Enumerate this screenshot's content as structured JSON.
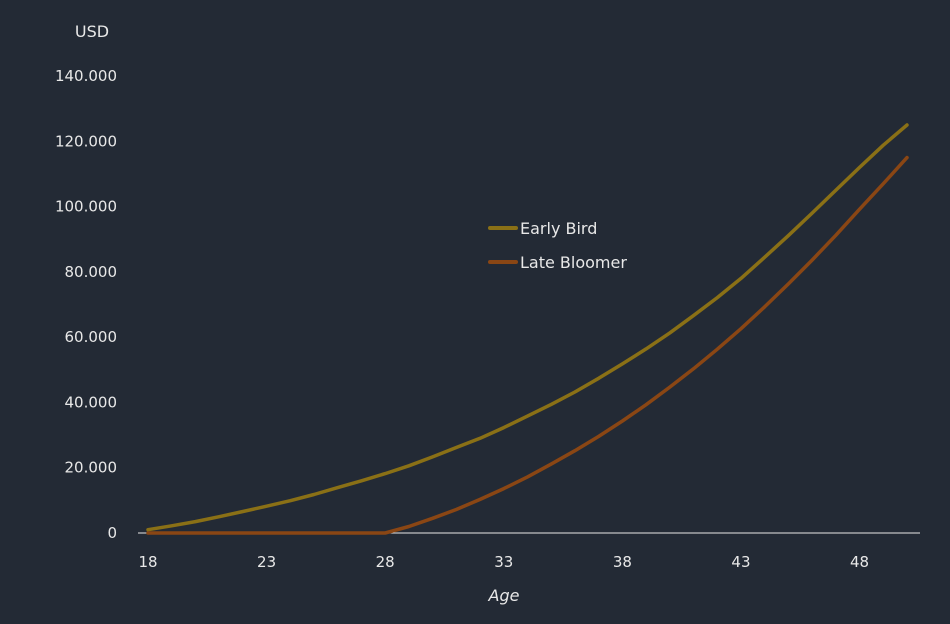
{
  "chart_data": {
    "type": "line",
    "title": "",
    "xlabel": "Age",
    "ylabel": "USD",
    "xlim": [
      18,
      50
    ],
    "ylim": [
      0,
      140000
    ],
    "x_ticks": [
      18,
      23,
      28,
      33,
      38,
      43,
      48
    ],
    "y_ticks": [
      0,
      20000,
      40000,
      60000,
      80000,
      100000,
      120000,
      140000
    ],
    "y_tick_labels": [
      "0",
      "20.000",
      "40.000",
      "60.000",
      "80.000",
      "100.000",
      "120.000",
      "140.000"
    ],
    "grid": false,
    "legend_position": "center",
    "x": [
      18,
      19,
      20,
      21,
      22,
      23,
      24,
      25,
      26,
      27,
      28,
      29,
      30,
      31,
      32,
      33,
      34,
      35,
      36,
      37,
      38,
      39,
      40,
      41,
      42,
      43,
      44,
      45,
      46,
      47,
      48,
      49,
      50
    ],
    "series": [
      {
        "name": "Early Bird",
        "color": "#8a7016",
        "values": [
          1000,
          2200,
          3500,
          5000,
          6600,
          8200,
          9900,
          11800,
          13900,
          16000,
          18200,
          20600,
          23300,
          26200,
          29000,
          32300,
          35800,
          39400,
          43200,
          47400,
          51800,
          56400,
          61300,
          66600,
          72100,
          78000,
          84500,
          91100,
          98000,
          105000,
          112000,
          118800,
          125000
        ]
      },
      {
        "name": "Late Bloomer",
        "color": "#8a4614",
        "values": [
          0,
          0,
          0,
          0,
          0,
          0,
          0,
          0,
          0,
          0,
          0,
          2000,
          4500,
          7200,
          10300,
          13600,
          17200,
          21100,
          25200,
          29600,
          34300,
          39300,
          44700,
          50300,
          56300,
          62600,
          69300,
          76300,
          83600,
          91200,
          99200,
          107000,
          115000
        ]
      }
    ]
  }
}
